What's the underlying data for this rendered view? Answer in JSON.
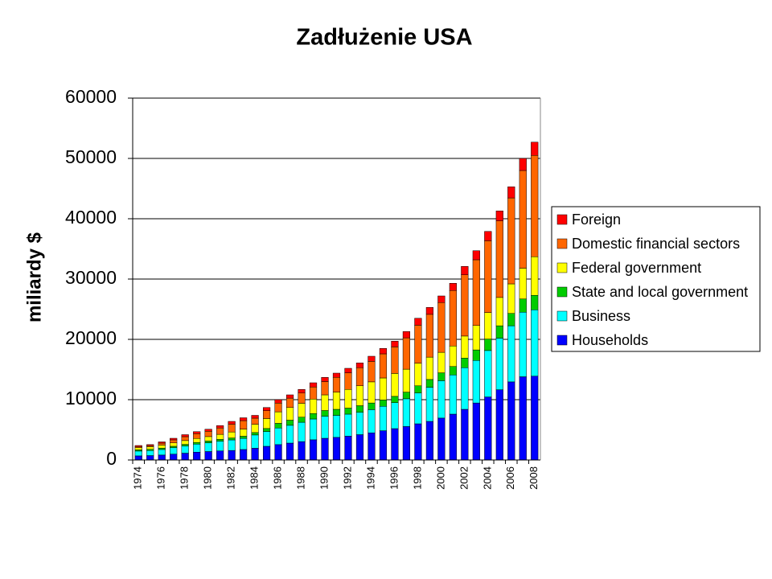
{
  "chart_data": {
    "type": "stacked-bar",
    "title": "Zadłużenie USA",
    "y_label": "miliardy $",
    "categories": [
      "1974",
      null,
      "1976",
      null,
      "1978",
      null,
      "1980",
      null,
      "1982",
      null,
      "1984",
      null,
      "1986",
      null,
      "1988",
      null,
      "1990",
      null,
      "1992",
      null,
      "1994",
      null,
      "1996",
      null,
      "1998",
      null,
      "2000",
      null,
      "2002",
      null,
      "2004",
      null,
      "2006",
      null,
      "2008"
    ],
    "series": [
      {
        "name": "Households",
        "color": "#0000ff",
        "values": [
          680,
          730,
          820,
          970,
          1130,
          1300,
          1400,
          1500,
          1580,
          1740,
          1950,
          2270,
          2550,
          2800,
          3050,
          3350,
          3600,
          3750,
          3950,
          4200,
          4500,
          4850,
          5200,
          5550,
          6000,
          6400,
          6950,
          7600,
          8400,
          9450,
          10450,
          11650,
          12950,
          13800,
          13900
        ]
      },
      {
        "name": "Business",
        "color": "#00ffff",
        "values": [
          800,
          830,
          920,
          1060,
          1200,
          1330,
          1450,
          1620,
          1750,
          1850,
          2200,
          2450,
          2750,
          2950,
          3200,
          3450,
          3650,
          3650,
          3650,
          3700,
          3850,
          4050,
          4300,
          4600,
          5100,
          5650,
          6200,
          6500,
          6900,
          7050,
          7700,
          8550,
          9300,
          10700,
          11000
        ]
      },
      {
        "name": "State and local government",
        "color": "#00cc00",
        "values": [
          200,
          220,
          235,
          245,
          260,
          280,
          290,
          300,
          320,
          350,
          400,
          500,
          780,
          850,
          850,
          900,
          950,
          1000,
          1000,
          1100,
          1100,
          1050,
          1050,
          1100,
          1200,
          1300,
          1300,
          1400,
          1600,
          1750,
          1900,
          2050,
          2050,
          2200,
          2400
        ]
      },
      {
        "name": "Federal government",
        "color": "#ffff00",
        "values": [
          350,
          420,
          500,
          560,
          630,
          660,
          740,
          830,
          990,
          1180,
          1380,
          1650,
          1900,
          2100,
          2300,
          2400,
          2600,
          2850,
          3100,
          3300,
          3500,
          3650,
          3800,
          3800,
          3750,
          3700,
          3400,
          3400,
          3650,
          4050,
          4400,
          4700,
          4900,
          5100,
          6400
        ]
      },
      {
        "name": "Domestic financial sectors",
        "color": "#ff6600",
        "values": [
          200,
          190,
          320,
          500,
          640,
          790,
          880,
          1050,
          1300,
          1400,
          1000,
          1300,
          1450,
          1550,
          1700,
          2000,
          2200,
          2450,
          2750,
          3000,
          3400,
          4000,
          4400,
          5200,
          6300,
          7100,
          8250,
          9200,
          10150,
          10900,
          11900,
          12700,
          14250,
          16200,
          16800
        ]
      },
      {
        "name": "Foreign",
        "color": "#ff0000",
        "values": [
          170,
          160,
          205,
          265,
          340,
          340,
          340,
          400,
          460,
          480,
          470,
          530,
          570,
          550,
          600,
          700,
          700,
          700,
          750,
          800,
          850,
          900,
          950,
          1050,
          1150,
          1150,
          1100,
          1200,
          1400,
          1500,
          1550,
          1650,
          1850,
          2000,
          2200
        ]
      }
    ],
    "ylim": [
      0,
      60000
    ],
    "yticks": [
      0,
      10000,
      20000,
      30000,
      40000,
      50000,
      60000
    ],
    "grid": true,
    "legend": "right"
  }
}
